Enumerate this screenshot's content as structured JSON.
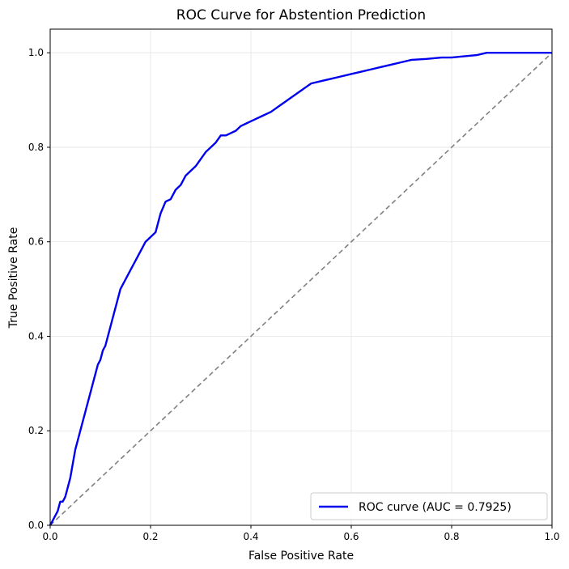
{
  "chart_data": {
    "type": "line",
    "title": "ROC Curve for Abstention Prediction",
    "xlabel": "False Positive Rate",
    "ylabel": "True Positive Rate",
    "xlim": [
      0.0,
      1.0
    ],
    "ylim": [
      0.0,
      1.05
    ],
    "x_ticks": [
      "0.0",
      "0.2",
      "0.4",
      "0.6",
      "0.8",
      "1.0"
    ],
    "y_ticks": [
      "0.0",
      "0.2",
      "0.4",
      "0.6",
      "0.8",
      "1.0"
    ],
    "grid": true,
    "legend_position": "lower-right",
    "series": [
      {
        "name": "ROC curve (AUC = 0.7925)",
        "color": "#0000ee",
        "style": "solid",
        "x": [
          0.0,
          0.005,
          0.01,
          0.015,
          0.02,
          0.025,
          0.03,
          0.035,
          0.04,
          0.045,
          0.05,
          0.055,
          0.06,
          0.065,
          0.07,
          0.075,
          0.08,
          0.085,
          0.09,
          0.095,
          0.1,
          0.105,
          0.11,
          0.115,
          0.12,
          0.125,
          0.13,
          0.135,
          0.14,
          0.145,
          0.15,
          0.16,
          0.17,
          0.18,
          0.19,
          0.2,
          0.21,
          0.22,
          0.23,
          0.24,
          0.25,
          0.26,
          0.27,
          0.28,
          0.29,
          0.3,
          0.31,
          0.32,
          0.33,
          0.34,
          0.35,
          0.36,
          0.37,
          0.38,
          0.39,
          0.4,
          0.42,
          0.44,
          0.46,
          0.48,
          0.5,
          0.52,
          0.54,
          0.56,
          0.58,
          0.6,
          0.62,
          0.64,
          0.66,
          0.68,
          0.7,
          0.72,
          0.75,
          0.78,
          0.8,
          0.82,
          0.85,
          0.87,
          0.9,
          0.95,
          1.0
        ],
        "y": [
          0.0,
          0.01,
          0.02,
          0.03,
          0.05,
          0.05,
          0.06,
          0.08,
          0.1,
          0.13,
          0.16,
          0.18,
          0.2,
          0.22,
          0.24,
          0.26,
          0.28,
          0.3,
          0.32,
          0.34,
          0.35,
          0.37,
          0.38,
          0.4,
          0.42,
          0.44,
          0.46,
          0.48,
          0.5,
          0.51,
          0.52,
          0.54,
          0.56,
          0.58,
          0.6,
          0.61,
          0.62,
          0.66,
          0.685,
          0.69,
          0.71,
          0.72,
          0.74,
          0.75,
          0.76,
          0.775,
          0.79,
          0.8,
          0.81,
          0.825,
          0.825,
          0.83,
          0.835,
          0.845,
          0.85,
          0.855,
          0.865,
          0.875,
          0.89,
          0.905,
          0.92,
          0.935,
          0.94,
          0.945,
          0.95,
          0.955,
          0.96,
          0.965,
          0.97,
          0.975,
          0.98,
          0.985,
          0.987,
          0.99,
          0.99,
          0.992,
          0.995,
          1.0,
          1.0,
          1.0,
          1.0
        ]
      },
      {
        "name": "",
        "color": "#808080",
        "style": "dashed",
        "x": [
          0.0,
          1.0
        ],
        "y": [
          0.0,
          1.0
        ]
      }
    ]
  }
}
